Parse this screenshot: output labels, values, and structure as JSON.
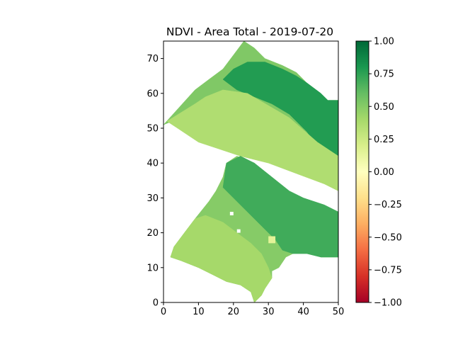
{
  "chart_data": {
    "type": "heatmap",
    "title": "NDVI - Area Total - 2019-07-20",
    "xlabel": "",
    "ylabel": "",
    "xlim": [
      0,
      50
    ],
    "ylim": [
      0,
      75
    ],
    "x_ticks": [
      0,
      10,
      20,
      30,
      40,
      50
    ],
    "y_ticks": [
      0,
      10,
      20,
      30,
      40,
      50,
      60,
      70
    ],
    "grid": false,
    "colormap": {
      "name": "RdYlGn",
      "range": [
        -1.0,
        1.0
      ],
      "ticks": [
        1.0,
        0.75,
        0.5,
        0.25,
        0.0,
        -0.25,
        -0.5,
        -0.75,
        -1.0
      ],
      "tick_labels": [
        "1.00",
        "0.75",
        "0.50",
        "0.25",
        "0.00",
        "−0.25",
        "−0.50",
        "−0.75",
        "−1.00"
      ],
      "stops": [
        {
          "value": -1.0,
          "color": "#a50026"
        },
        {
          "value": -0.8,
          "color": "#d73027"
        },
        {
          "value": -0.6,
          "color": "#f46d43"
        },
        {
          "value": -0.4,
          "color": "#fdae61"
        },
        {
          "value": -0.2,
          "color": "#fee08b"
        },
        {
          "value": 0.0,
          "color": "#ffffbf"
        },
        {
          "value": 0.2,
          "color": "#d9ef8b"
        },
        {
          "value": 0.4,
          "color": "#a6d96a"
        },
        {
          "value": 0.6,
          "color": "#66bd63"
        },
        {
          "value": 0.8,
          "color": "#1a9850"
        },
        {
          "value": 1.0,
          "color": "#006837"
        }
      ]
    },
    "regions": [
      {
        "name": "upper-parcel-background",
        "ndvi": 0.52,
        "polygon": [
          [
            0,
            51
          ],
          [
            9,
            61
          ],
          [
            13,
            64
          ],
          [
            17,
            67
          ],
          [
            20,
            71
          ],
          [
            23,
            75
          ],
          [
            26,
            73
          ],
          [
            29,
            70
          ],
          [
            34,
            68
          ],
          [
            38,
            66
          ],
          [
            41,
            63
          ],
          [
            45,
            60
          ],
          [
            47,
            58
          ],
          [
            50,
            58
          ],
          [
            50,
            41
          ],
          [
            46,
            42
          ],
          [
            38,
            45
          ],
          [
            30,
            47
          ],
          [
            20,
            50
          ],
          [
            12,
            52
          ],
          [
            5,
            53
          ],
          [
            0,
            51
          ]
        ]
      },
      {
        "name": "upper-parcel-dark-band",
        "ndvi": 0.78,
        "polygon": [
          [
            17,
            64
          ],
          [
            20,
            67
          ],
          [
            24,
            69
          ],
          [
            29,
            69
          ],
          [
            34,
            67
          ],
          [
            38,
            65
          ],
          [
            41,
            63
          ],
          [
            45,
            60
          ],
          [
            47,
            58
          ],
          [
            50,
            58
          ],
          [
            50,
            41
          ],
          [
            47,
            42
          ],
          [
            44,
            45
          ],
          [
            41,
            49
          ],
          [
            36,
            54
          ],
          [
            31,
            57
          ],
          [
            26,
            59
          ],
          [
            21,
            61
          ],
          [
            17,
            64
          ]
        ]
      },
      {
        "name": "middle-diagonal-strip",
        "ndvi": 0.36,
        "polygon": [
          [
            1,
            52
          ],
          [
            9,
            57
          ],
          [
            12,
            59
          ],
          [
            17,
            61
          ],
          [
            24,
            60
          ],
          [
            36,
            53
          ],
          [
            44,
            46
          ],
          [
            50,
            42
          ],
          [
            50,
            32
          ],
          [
            46,
            34
          ],
          [
            38,
            37
          ],
          [
            30,
            40
          ],
          [
            22,
            42
          ],
          [
            16,
            44
          ],
          [
            10,
            46
          ],
          [
            4,
            50
          ],
          [
            1,
            52
          ]
        ]
      },
      {
        "name": "lower-parcel-background",
        "ndvi": 0.5,
        "polygon": [
          [
            2,
            13
          ],
          [
            5,
            12
          ],
          [
            10,
            10
          ],
          [
            14,
            8
          ],
          [
            18,
            6
          ],
          [
            22,
            5
          ],
          [
            25,
            3
          ],
          [
            26,
            0
          ],
          [
            28,
            2
          ],
          [
            29,
            4
          ],
          [
            31,
            7
          ],
          [
            31,
            9
          ],
          [
            33,
            10
          ],
          [
            35,
            13
          ],
          [
            37,
            14
          ],
          [
            41,
            15
          ],
          [
            45,
            13
          ],
          [
            50,
            13
          ],
          [
            50,
            25
          ],
          [
            46,
            27
          ],
          [
            40,
            29
          ],
          [
            36,
            31
          ],
          [
            31,
            35
          ],
          [
            26,
            40
          ],
          [
            21,
            42
          ],
          [
            18,
            40
          ],
          [
            17,
            36
          ],
          [
            15,
            32
          ],
          [
            13,
            29
          ],
          [
            9,
            24
          ],
          [
            6,
            20
          ],
          [
            3,
            16
          ],
          [
            2,
            13
          ]
        ]
      },
      {
        "name": "lower-parcel-dark-area",
        "ndvi": 0.7,
        "polygon": [
          [
            18,
            40
          ],
          [
            22,
            42
          ],
          [
            26,
            40
          ],
          [
            31,
            36
          ],
          [
            36,
            32
          ],
          [
            40,
            30
          ],
          [
            46,
            28
          ],
          [
            50,
            26
          ],
          [
            50,
            13
          ],
          [
            45,
            13
          ],
          [
            41,
            14
          ],
          [
            37,
            14
          ],
          [
            34,
            15
          ],
          [
            32,
            18
          ],
          [
            30,
            20
          ],
          [
            26,
            24
          ],
          [
            21,
            29
          ],
          [
            17,
            33
          ],
          [
            18,
            40
          ]
        ]
      },
      {
        "name": "lower-left-light-field",
        "ndvi": 0.4,
        "polygon": [
          [
            2,
            13
          ],
          [
            5,
            12
          ],
          [
            10,
            10
          ],
          [
            14,
            8
          ],
          [
            18,
            6
          ],
          [
            22,
            5
          ],
          [
            25,
            3
          ],
          [
            26,
            0
          ],
          [
            28,
            2
          ],
          [
            29,
            4
          ],
          [
            31,
            7
          ],
          [
            30,
            10
          ],
          [
            28,
            14
          ],
          [
            25,
            17
          ],
          [
            21,
            20
          ],
          [
            17,
            23
          ],
          [
            12,
            25
          ],
          [
            9,
            24
          ],
          [
            6,
            20
          ],
          [
            3,
            16
          ],
          [
            2,
            13
          ]
        ]
      }
    ],
    "anomalies": [
      {
        "x": 30,
        "y": 17,
        "w": 2,
        "h": 2,
        "ndvi": 0.15
      },
      {
        "x": 21,
        "y": 20,
        "w": 1,
        "h": 1,
        "ndvi": null
      },
      {
        "x": 19,
        "y": 25,
        "w": 1,
        "h": 1,
        "ndvi": null
      },
      {
        "x": 41,
        "y": 33,
        "w": 1,
        "h": 1,
        "ndvi": null
      }
    ]
  }
}
